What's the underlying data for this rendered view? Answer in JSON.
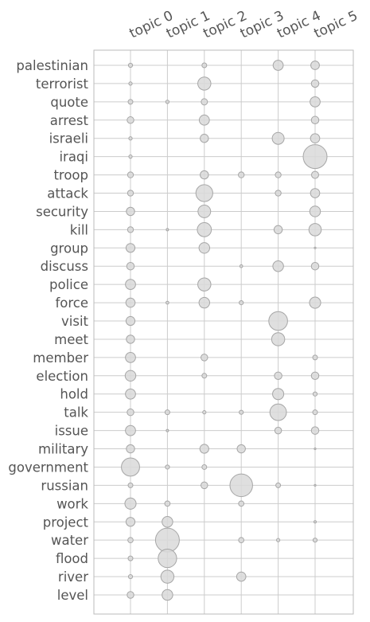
{
  "chart_data": {
    "type": "scatter",
    "title": "",
    "xlabel": "",
    "ylabel": "",
    "grid": true,
    "legend": "none",
    "encoding": "circle area proportional to term weight",
    "colors": {
      "bubble_fill": "#d9d9d9",
      "bubble_stroke": "#a6a6a6",
      "grid": "#cccccc",
      "axes": "#bbbbbb",
      "text": "#555555"
    },
    "x_categories": [
      "topic 0",
      "topic 1",
      "topic 2",
      "topic 3",
      "topic 4",
      "topic 5"
    ],
    "y_categories": [
      "palestinian",
      "terrorist",
      "quote",
      "arrest",
      "israeli",
      "iraqi",
      "troop",
      "attack",
      "security",
      "kill",
      "group",
      "discuss",
      "police",
      "force",
      "visit",
      "meet",
      "member",
      "election",
      "hold",
      "talk",
      "issue",
      "military",
      "government",
      "russian",
      "work",
      "project",
      "water",
      "flood",
      "river",
      "level"
    ],
    "weights": [
      [
        0.03,
        0.0,
        0.04,
        0.0,
        0.18,
        0.13
      ],
      [
        0.02,
        0.0,
        0.3,
        0.0,
        0.0,
        0.1
      ],
      [
        0.04,
        0.02,
        0.07,
        0.0,
        0.0,
        0.18
      ],
      [
        0.08,
        0.0,
        0.18,
        0.0,
        0.0,
        0.1
      ],
      [
        0.02,
        0.0,
        0.12,
        0.0,
        0.25,
        0.15
      ],
      [
        0.02,
        0.0,
        0.0,
        0.0,
        0.0,
        1.0
      ],
      [
        0.06,
        0.0,
        0.12,
        0.06,
        0.06,
        0.09
      ],
      [
        0.06,
        0.0,
        0.5,
        0.0,
        0.06,
        0.15
      ],
      [
        0.12,
        0.0,
        0.28,
        0.0,
        0.0,
        0.2
      ],
      [
        0.06,
        0.01,
        0.35,
        0.0,
        0.12,
        0.27
      ],
      [
        0.14,
        0.0,
        0.2,
        0.0,
        0.0,
        0.005
      ],
      [
        0.1,
        0.0,
        0.0,
        0.015,
        0.2,
        0.1
      ],
      [
        0.18,
        0.0,
        0.3,
        0.0,
        0.0,
        0.0
      ],
      [
        0.15,
        0.015,
        0.2,
        0.03,
        0.0,
        0.22
      ],
      [
        0.14,
        0.0,
        0.0,
        0.0,
        0.62,
        0.0
      ],
      [
        0.12,
        0.0,
        0.0,
        0.0,
        0.3,
        0.0
      ],
      [
        0.18,
        0.0,
        0.08,
        0.0,
        0.0,
        0.04
      ],
      [
        0.2,
        0.0,
        0.04,
        0.0,
        0.1,
        0.1
      ],
      [
        0.18,
        0.0,
        0.0,
        0.0,
        0.22,
        0.03
      ],
      [
        0.08,
        0.04,
        0.02,
        0.03,
        0.48,
        0.04
      ],
      [
        0.18,
        0.01,
        0.0,
        0.0,
        0.08,
        0.1
      ],
      [
        0.12,
        0.0,
        0.14,
        0.12,
        0.0,
        0.005
      ],
      [
        0.58,
        0.03,
        0.04,
        0.0,
        0.0,
        0.0
      ],
      [
        0.04,
        0.0,
        0.08,
        0.9,
        0.04,
        0.005
      ],
      [
        0.22,
        0.05,
        0.0,
        0.05,
        0.0,
        0.0
      ],
      [
        0.14,
        0.2,
        0.0,
        0.0,
        0.0,
        0.01
      ],
      [
        0.05,
        1.0,
        0.0,
        0.05,
        0.02,
        0.03
      ],
      [
        0.04,
        0.6,
        0.0,
        0.0,
        0.0,
        0.0
      ],
      [
        0.03,
        0.3,
        0.0,
        0.15,
        0.0,
        0.0
      ],
      [
        0.08,
        0.2,
        0.0,
        0.0,
        0.0,
        0.0
      ]
    ]
  }
}
